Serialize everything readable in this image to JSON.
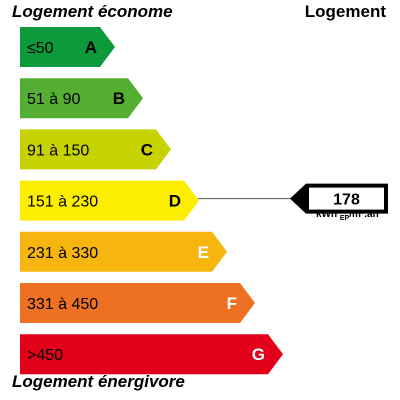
{
  "header": {
    "top_left": "Logement économe",
    "top_right": "Logement",
    "bottom_left": "Logement énergivore"
  },
  "classes": [
    {
      "range": "≤50",
      "letter": "A",
      "color": "#0c9a3c",
      "text_color": "#000000",
      "letter_color": "#000000"
    },
    {
      "range": "51 à 90",
      "letter": "B",
      "color": "#53ae32",
      "text_color": "#000000",
      "letter_color": "#000000"
    },
    {
      "range": "91 à 150",
      "letter": "C",
      "color": "#c7d301",
      "text_color": "#000000",
      "letter_color": "#000000"
    },
    {
      "range": "151 à 230",
      "letter": "D",
      "color": "#fdee00",
      "text_color": "#000000",
      "letter_color": "#000000"
    },
    {
      "range": "231 à 330",
      "letter": "E",
      "color": "#f7b60f",
      "text_color": "#000000",
      "letter_color": "#ffffff"
    },
    {
      "range": "331 à 450",
      "letter": "F",
      "color": "#ed7023",
      "text_color": "#000000",
      "letter_color": "#ffffff"
    },
    {
      "range": ">450",
      "letter": "G",
      "color": "#e2001a",
      "text_color": "#ffffff",
      "letter_color": "#ffffff"
    }
  ],
  "indicator": {
    "value": "178",
    "class_index": 3,
    "unit_main": "kWh",
    "unit_sub": "EP",
    "unit_suffix": "/m².an"
  }
}
